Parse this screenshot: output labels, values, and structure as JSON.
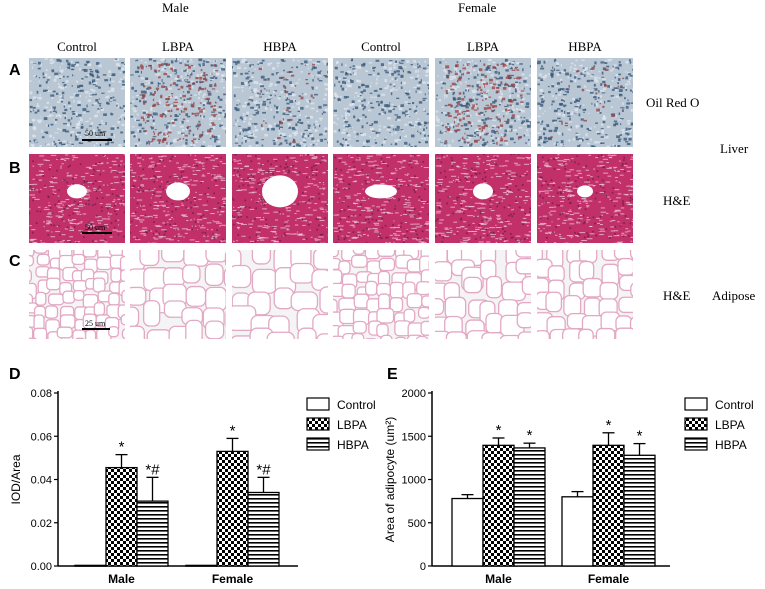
{
  "figure": {
    "sex_headers": [
      "Male",
      "Female"
    ],
    "column_headers": [
      "Control",
      "LBPA",
      "HBPA",
      "Control",
      "LBPA",
      "HBPA"
    ],
    "row_labels": [
      "A",
      "B",
      "C"
    ],
    "row_stains": [
      "Oil Red O",
      "H&E",
      "H&E"
    ],
    "tissue_liver": "Liver",
    "tissue_adipose": "Adipose",
    "scale_labels": [
      "50 um",
      "50 um",
      "25 um"
    ],
    "panel_labels": [
      "D",
      "E"
    ]
  },
  "colors": {
    "oil_base": "#3a5a7a",
    "oil_red": "#9a3c3c",
    "he_base": "#c2306a",
    "he_light": "#f3d6e2",
    "adipose_bg": "#f4f4f4",
    "adipose_wall": "#e3a8c4"
  },
  "chart_data": [
    {
      "type": "bar",
      "panel": "D",
      "ylabel": "IOD/Area",
      "categories": [
        "Male",
        "Female"
      ],
      "ylim": [
        0,
        0.08
      ],
      "yticks": [
        "0.00",
        "0.02",
        "0.04",
        "0.06",
        "0.08"
      ],
      "series": [
        {
          "name": "Control",
          "values": [
            0.0003,
            0.0003
          ],
          "errors": [
            0,
            0
          ],
          "annotations": [
            "",
            ""
          ]
        },
        {
          "name": "LBPA",
          "values": [
            0.0455,
            0.053
          ],
          "errors": [
            0.006,
            0.006
          ],
          "annotations": [
            "*",
            "*"
          ]
        },
        {
          "name": "HBPA",
          "values": [
            0.03,
            0.034
          ],
          "errors": [
            0.011,
            0.007
          ],
          "annotations": [
            "*#",
            "*#"
          ]
        }
      ],
      "legend_position": "right"
    },
    {
      "type": "bar",
      "panel": "E",
      "ylabel": "Area of adipocyte (um²)",
      "categories": [
        "Male",
        "Female"
      ],
      "ylim": [
        0,
        2000
      ],
      "yticks": [
        "0",
        "500",
        "1000",
        "1500",
        "2000"
      ],
      "series": [
        {
          "name": "Control",
          "values": [
            780,
            800
          ],
          "errors": [
            45,
            60
          ],
          "annotations": [
            "",
            ""
          ]
        },
        {
          "name": "LBPA",
          "values": [
            1395,
            1395
          ],
          "errors": [
            85,
            145
          ],
          "annotations": [
            "*",
            "*"
          ]
        },
        {
          "name": "HBPA",
          "values": [
            1365,
            1280
          ],
          "errors": [
            55,
            135
          ],
          "annotations": [
            "*",
            "*"
          ]
        }
      ],
      "legend_position": "right"
    }
  ]
}
